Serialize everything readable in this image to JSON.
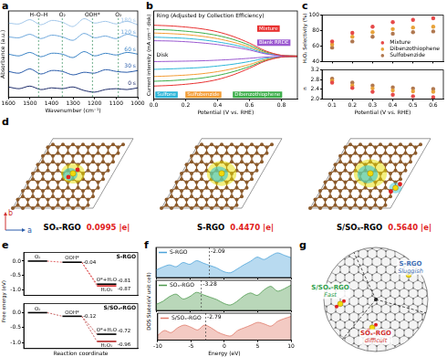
{
  "chart_data": [
    {
      "panel": "a",
      "type": "line",
      "xlabel": "Wavenumber (cm⁻¹)",
      "ylabel": "Absorbance (a.u.)",
      "x": [
        1600,
        1550,
        1500,
        1450,
        1400,
        1350,
        1300,
        1250,
        1200,
        1150,
        1100,
        1050,
        1000
      ],
      "series": [
        {
          "name": "0 s",
          "color": "#1f2d6b",
          "values": [
            1.2,
            1.0,
            1.3,
            0.9,
            1.1,
            1.0,
            1.2,
            0.8,
            0.6,
            0.9,
            1.0,
            0.9,
            1.1
          ]
        },
        {
          "name": "30 s",
          "color": "#2a5caa",
          "values": [
            3.0,
            2.8,
            3.3,
            2.7,
            3.1,
            3.0,
            2.6,
            2.9,
            2.8,
            3.2,
            3.0,
            2.9,
            3.1
          ]
        },
        {
          "name": "60 s",
          "color": "#3d85c6",
          "values": [
            5.0,
            4.8,
            5.2,
            4.7,
            5.1,
            5.0,
            4.6,
            5.3,
            4.8,
            5.1,
            4.9,
            5.2,
            5.0
          ]
        },
        {
          "name": "120 s",
          "color": "#6fa8dc",
          "values": [
            7.0,
            6.9,
            7.3,
            6.8,
            7.2,
            7.0,
            6.6,
            7.4,
            6.9,
            7.1,
            6.8,
            7.3,
            7.0
          ]
        },
        {
          "name": "180 s",
          "color": "#a4c8ea",
          "values": [
            8.6,
            8.5,
            9.0,
            8.4,
            8.9,
            8.7,
            8.2,
            9.1,
            8.6,
            8.8,
            8.5,
            8.8,
            8.4
          ]
        }
      ],
      "annotations": [
        {
          "x": 1460,
          "label": "H–O–H"
        },
        {
          "x": 1350,
          "label": "O₂"
        },
        {
          "x": 1210,
          "label": "OOH*"
        },
        {
          "x": 1090,
          "label": "O₂"
        }
      ],
      "xlim": [
        1600,
        1000
      ],
      "xticks": [
        1600,
        1500,
        1400,
        1300,
        1200,
        1100,
        1000
      ],
      "ylim": [
        0,
        10
      ],
      "yticks": [],
      "tick_labels": "x"
    },
    {
      "panel": "b",
      "type": "line",
      "xlabel": "Potential (V vs. RHE)",
      "ylabel": "Current intensity (mA cm⁻² disk)",
      "annotations": [
        "Ring (Adjusted by Collection Efficiency)",
        "Disk"
      ],
      "x": [
        0,
        0.1,
        0.2,
        0.3,
        0.4,
        0.5,
        0.6,
        0.7,
        0.8,
        0.9
      ],
      "series": [
        {
          "name": "Mixture",
          "color": "#e8302f",
          "ring": [
            2.6,
            2.55,
            2.45,
            2.3,
            2.05,
            1.65,
            1.1,
            0.45,
            0.08,
            0.02
          ],
          "disk": [
            -2.5,
            -2.45,
            -2.35,
            -2.2,
            -1.95,
            -1.55,
            -1.0,
            -0.4,
            -0.07,
            -0.02
          ]
        },
        {
          "name": "Blank RRDE",
          "color": "#9b59d0",
          "ring": [
            1.3,
            1.28,
            1.22,
            1.12,
            0.98,
            0.78,
            0.52,
            0.2,
            0.04,
            0.01
          ],
          "disk": [
            -0.45,
            -0.43,
            -0.41,
            -0.38,
            -0.33,
            -0.26,
            -0.17,
            -0.07,
            -0.02,
            -0.01
          ]
        },
        {
          "name": "Sulfone",
          "color": "#2bb5d8",
          "ring": [
            1.6,
            1.56,
            1.5,
            1.38,
            1.2,
            0.96,
            0.64,
            0.25,
            0.05,
            0.01
          ],
          "disk": [
            -1.1,
            -1.06,
            -1.01,
            -0.94,
            -0.82,
            -0.66,
            -0.44,
            -0.17,
            -0.04,
            -0.01
          ]
        },
        {
          "name": "Sulfobenzide",
          "color": "#f39c34",
          "ring": [
            1.95,
            1.9,
            1.82,
            1.68,
            1.47,
            1.17,
            0.78,
            0.3,
            0.06,
            0.01
          ],
          "disk": [
            -1.7,
            -1.65,
            -1.58,
            -1.47,
            -1.29,
            -1.03,
            -0.69,
            -0.27,
            -0.05,
            -0.01
          ]
        },
        {
          "name": "Dibenzothiophene",
          "color": "#3cae4a",
          "ring": [
            2.25,
            2.2,
            2.1,
            1.96,
            1.74,
            1.4,
            0.93,
            0.37,
            0.07,
            0.02
          ],
          "disk": [
            -2.1,
            -2.05,
            -1.96,
            -1.83,
            -1.61,
            -1.29,
            -0.86,
            -0.34,
            -0.06,
            -0.02
          ]
        }
      ],
      "xlim": [
        0,
        0.9
      ],
      "xticks": [
        {
          "value": 0,
          "label": "0.0"
        },
        0.2,
        0.4,
        0.6,
        0.8
      ],
      "ylim": [
        -3.6,
        3.8
      ],
      "yticks": [],
      "tick_labels": "x"
    },
    {
      "panel": "c",
      "charts": [
        {
          "type": "scatter",
          "ylabel": "H₂O₂ Selectivity (%)",
          "marker": "circle",
          "legend": "lower right",
          "x": [
            0.1,
            0.2,
            0.3,
            0.4,
            0.5,
            0.6
          ],
          "series": [
            {
              "name": "Mixture",
              "color": "#e64a4a",
              "values": [
                66,
                77,
                85,
                91,
                94,
                96
              ]
            },
            {
              "name": "Dibenzothiophene",
              "color": "#e8a33a",
              "values": [
                62,
                72,
                78,
                82,
                84,
                85
              ]
            },
            {
              "name": "Sulfobenzide",
              "color": "#b07850",
              "values": [
                58,
                66,
                72,
                76,
                78,
                79
              ]
            }
          ],
          "xlim": [
            0.05,
            0.65
          ],
          "xticks": [
            0.1,
            0.2,
            0.3,
            0.4,
            0.5,
            0.6
          ],
          "ylim": [
            40,
            100
          ],
          "yticks": [
            40,
            60,
            80,
            100
          ],
          "tick_labels": "y"
        },
        {
          "type": "scatter",
          "xlabel": "Potential (V vs. RHE)",
          "ylabel": "n",
          "marker": "circle",
          "x": [
            0.1,
            0.2,
            0.3,
            0.4,
            0.5,
            0.6
          ],
          "series": [
            {
              "name": "Mixture",
              "color": "#e64a4a",
              "values": [
                2.68,
                2.46,
                2.3,
                2.18,
                2.12,
                2.08
              ]
            },
            {
              "name": "Dibenzothiophene",
              "color": "#e8a33a",
              "values": [
                2.76,
                2.56,
                2.44,
                2.36,
                2.32,
                2.3
              ]
            },
            {
              "name": "Sulfobenzide",
              "color": "#b07850",
              "values": [
                2.84,
                2.68,
                2.56,
                2.48,
                2.44,
                2.42
              ]
            }
          ],
          "xlim": [
            0.05,
            0.65
          ],
          "xticks": [
            0.1,
            0.2,
            0.3,
            0.4,
            0.5,
            0.6
          ],
          "ylim": [
            2,
            3.2
          ],
          "yticks": [
            {
              "value": 2,
              "label": "2.0"
            },
            2.4,
            2.8,
            3.2
          ]
        }
      ]
    },
    {
      "panel": "e",
      "ylabel": "Free energy (eV)",
      "charts": [
        {
          "type": "energy_levels",
          "title": "S-RGO",
          "color": "#d62728",
          "point_labels": [
            "O₂",
            "OOH*",
            "O*+H₂O",
            "H₂O₂"
          ],
          "x": [
            0,
            1,
            2,
            2
          ],
          "values": [
            0,
            -0.04,
            -0.81,
            -0.87
          ],
          "value_labels": [
            null,
            "-0.04",
            "-0.81",
            "-0.87"
          ],
          "xlim": [
            -0.4,
            2.9
          ],
          "ylim": [
            -1.2,
            0.3
          ],
          "yticks": [
            {
              "value": 0,
              "label": "0.0"
            },
            -0.5,
            {
              "value": -1,
              "label": "-1.0"
            }
          ],
          "tick_labels": "y"
        },
        {
          "type": "energy_levels",
          "title": "S/SOₓ-RGO",
          "color": "#b22222",
          "xlabel": "Reaction coordinate",
          "point_labels": [
            "O₂",
            "OOH*",
            "O*+H₂O",
            "H₂O₂"
          ],
          "x": [
            0,
            1,
            2,
            2
          ],
          "values": [
            0,
            -0.12,
            -0.72,
            -0.96
          ],
          "value_labels": [
            null,
            "-0.12",
            "-0.72",
            "-0.96"
          ],
          "xlim": [
            -0.4,
            2.9
          ],
          "ylim": [
            -1.2,
            0.3
          ],
          "yticks": [
            {
              "value": 0,
              "label": "0.0"
            },
            -0.5,
            {
              "value": -1,
              "label": "-1.0"
            }
          ],
          "tick_labels": "y"
        }
      ]
    },
    {
      "panel": "f",
      "ylabel": "DOS State(eV unit cell)",
      "charts": [
        {
          "type": "area",
          "legend": "upper left",
          "d_band_center": -2.09,
          "x": [
            -10,
            -9,
            -8,
            -7,
            -6,
            -5,
            -4,
            -3,
            -2,
            -1,
            0,
            1,
            2,
            3,
            4,
            5,
            6,
            7,
            8,
            9,
            10
          ],
          "series": [
            {
              "name": "S-RGO",
              "color": "#4da3d9",
              "values": [
                2.5,
                3.5,
                4.2,
                3.6,
                5.0,
                4.4,
                5.6,
                4.8,
                4.0,
                3.2,
                2.0,
                1.6,
                2.8,
                4.2,
                5.4,
                6.8,
                6.0,
                7.2,
                8.2,
                7.4,
                6.6
              ]
            }
          ],
          "xlim": [
            -10,
            10
          ],
          "xticks": [
            -10,
            -5,
            0,
            5,
            10
          ],
          "ylim": [
            0,
            10
          ],
          "yticks": [],
          "tick_labels": false
        },
        {
          "type": "area",
          "legend": "upper left",
          "d_band_center": -3.28,
          "x": [
            -10,
            -9,
            -8,
            -7,
            -6,
            -5,
            -4,
            -3,
            -2,
            -1,
            0,
            1,
            2,
            3,
            4,
            5,
            6,
            7,
            8,
            9,
            10
          ],
          "series": [
            {
              "name": "SOₓ-RGO",
              "color": "#4f9a4f",
              "values": [
                2.0,
                3.0,
                4.6,
                5.4,
                3.8,
                4.6,
                6.0,
                5.2,
                4.4,
                3.6,
                2.4,
                1.8,
                3.0,
                4.8,
                5.8,
                5.0,
                6.8,
                8.0,
                6.4,
                7.2,
                8.4
              ]
            }
          ],
          "xlim": [
            -10,
            10
          ],
          "xticks": [
            -10,
            -5,
            0,
            5,
            10
          ],
          "ylim": [
            0,
            10
          ],
          "yticks": [],
          "tick_labels": false
        },
        {
          "type": "area",
          "legend": "upper left",
          "d_band_center": -2.79,
          "xlabel": "Energy (eV)",
          "x": [
            -10,
            -9,
            -8,
            -7,
            -6,
            -5,
            -4,
            -3,
            -2,
            -1,
            0,
            1,
            2,
            3,
            4,
            5,
            6,
            7,
            8,
            9,
            10
          ],
          "series": [
            {
              "name": "S/SOₓ-RGO",
              "color": "#e07a6a",
              "values": [
                1.8,
                3.6,
                2.8,
                4.6,
                5.6,
                4.8,
                3.8,
                5.6,
                4.6,
                3.0,
                2.0,
                1.6,
                3.6,
                4.6,
                5.6,
                6.6,
                6.0,
                5.2,
                7.0,
                8.0,
                8.8
              ]
            }
          ],
          "xlim": [
            -10,
            10
          ],
          "xticks": [
            -10,
            -5,
            0,
            5,
            10
          ],
          "ylim": [
            0,
            10
          ],
          "yticks": [],
          "tick_labels": "x"
        }
      ]
    }
  ],
  "diagrams": [
    {
      "panel": "d",
      "axes": [
        "a",
        "b"
      ],
      "structures": [
        {
          "name": "SOₓ-RGO",
          "charge": "0.0995 |e|"
        },
        {
          "name": "S-RGO",
          "charge": "0.4470 |e|"
        },
        {
          "name": "S/SOₓ-RGO",
          "charge": "0.5640 |e|"
        }
      ]
    },
    {
      "panel": "g",
      "sectors": [
        {
          "name": "S-RGO",
          "rate": "Sluggish"
        },
        {
          "name": "S/SOₓ-RGO",
          "rate": "Fast"
        },
        {
          "name": "SOₓ-RGO",
          "rate": "difficult"
        }
      ]
    }
  ]
}
